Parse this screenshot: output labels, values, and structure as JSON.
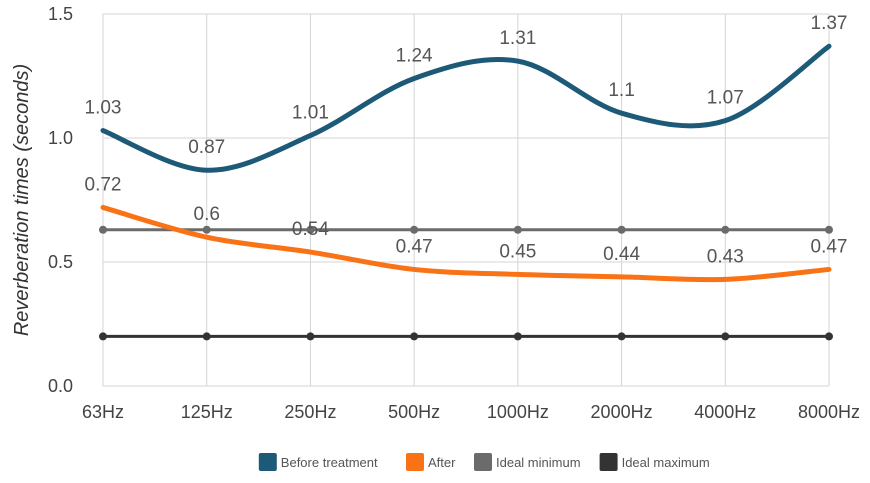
{
  "chart_data": {
    "type": "line",
    "ylabel": "Reverberation times (seconds)",
    "xlabel": "",
    "categories": [
      "63Hz",
      "125Hz",
      "250Hz",
      "500Hz",
      "1000Hz",
      "2000Hz",
      "4000Hz",
      "8000Hz"
    ],
    "y_ticks": [
      "0.0",
      "0.5",
      "1.0",
      "1.5"
    ],
    "ylim": [
      0,
      1.5
    ],
    "grid": true,
    "legend_position": "bottom",
    "series": [
      {
        "name": "Before treatment",
        "color": "#1d5a78",
        "values": [
          1.03,
          0.87,
          1.01,
          1.24,
          1.31,
          1.1,
          1.07,
          1.37
        ],
        "labels": [
          "1.03",
          "0.87",
          "1.01",
          "1.24",
          "1.31",
          "1.1",
          "1.07",
          "1.37"
        ],
        "markers": false
      },
      {
        "name": "After",
        "color": "#f97316",
        "values": [
          0.72,
          0.6,
          0.54,
          0.47,
          0.45,
          0.44,
          0.43,
          0.47
        ],
        "labels": [
          "0.72",
          "0.6",
          "0.54",
          "0.47",
          "0.45",
          "0.44",
          "0.43",
          "0.47"
        ],
        "markers": false
      },
      {
        "name": "Ideal minimum",
        "color": "#6b6b6b",
        "values": [
          0.63,
          0.63,
          0.63,
          0.63,
          0.63,
          0.63,
          0.63,
          0.63
        ],
        "markers": true
      },
      {
        "name": "Ideal maximum",
        "color": "#333333",
        "values": [
          0.2,
          0.2,
          0.2,
          0.2,
          0.2,
          0.2,
          0.2,
          0.2
        ],
        "markers": true
      }
    ]
  }
}
